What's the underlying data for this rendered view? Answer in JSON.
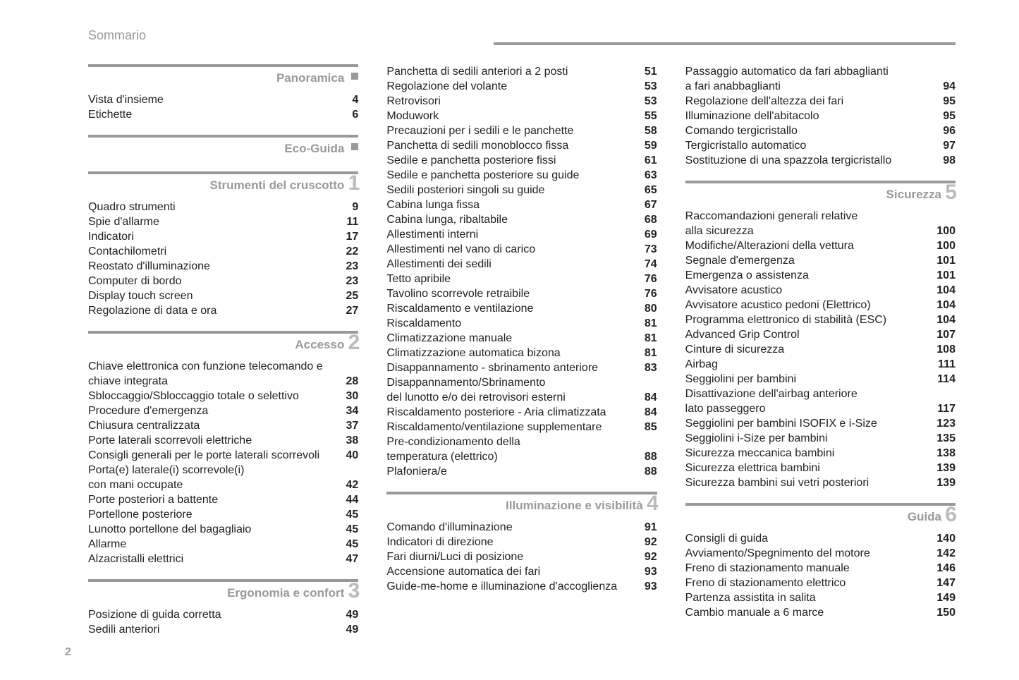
{
  "page_title": "Sommario",
  "page_number": "2",
  "columns": [
    {
      "sections": [
        {
          "title": "Panoramica",
          "marker": "square",
          "no_top_margin": true,
          "entries": [
            {
              "label": "Vista d'insieme",
              "page": "4"
            },
            {
              "label": "Etichette",
              "page": "6"
            }
          ]
        },
        {
          "title": "Eco-Guida",
          "marker": "square",
          "entries": []
        },
        {
          "title": "Strumenti del cruscotto",
          "num": "1",
          "entries": [
            {
              "label": "Quadro strumenti",
              "page": "9"
            },
            {
              "label": "Spie d'allarme",
              "page": "11"
            },
            {
              "label": "Indicatori",
              "page": "17"
            },
            {
              "label": "Contachilometri",
              "page": "22"
            },
            {
              "label": "Reostato d'illuminazione",
              "page": "23"
            },
            {
              "label": "Computer di bordo",
              "page": "23"
            },
            {
              "label": "Display touch screen",
              "page": "25"
            },
            {
              "label": "Regolazione di data e ora",
              "page": "27"
            }
          ]
        },
        {
          "title": "Accesso",
          "num": "2",
          "entries": [
            {
              "label": "Chiave elettronica con funzione telecomando e",
              "page": ""
            },
            {
              "label": "chiave integrata",
              "page": "28"
            },
            {
              "label": "Sbloccaggio/Sbloccaggio totale o selettivo",
              "page": "30"
            },
            {
              "label": "Procedure d'emergenza",
              "page": "34"
            },
            {
              "label": "Chiusura centralizzata",
              "page": "37"
            },
            {
              "label": "Porte laterali scorrevoli elettriche",
              "page": "38"
            },
            {
              "label": "Consigli generali per le porte laterali scorrevoli",
              "page": "40"
            },
            {
              "label": "Porta(e) laterale(i) scorrevole(i)",
              "page": ""
            },
            {
              "label": "con mani occupate",
              "page": "42"
            },
            {
              "label": "Porte posteriori a battente",
              "page": "44"
            },
            {
              "label": "Portellone posteriore",
              "page": "45"
            },
            {
              "label": "Lunotto portellone del bagagliaio",
              "page": "45"
            },
            {
              "label": "Allarme",
              "page": "45"
            },
            {
              "label": "Alzacristalli elettrici",
              "page": "47"
            }
          ]
        },
        {
          "title": "Ergonomia e confort",
          "num": "3",
          "entries": [
            {
              "label": "Posizione di guida corretta",
              "page": "49"
            },
            {
              "label": "Sedili anteriori",
              "page": "49"
            }
          ]
        }
      ]
    },
    {
      "sections": [
        {
          "no_header": true,
          "entries": [
            {
              "label": "Panchetta di sedili anteriori a 2 posti",
              "page": "51"
            },
            {
              "label": "Regolazione del volante",
              "page": "53"
            },
            {
              "label": "Retrovisori",
              "page": "53"
            },
            {
              "label": "Moduwork",
              "page": "55"
            },
            {
              "label": "Precauzioni per i sedili e le panchette",
              "page": "58"
            },
            {
              "label": "Panchetta di sedili monoblocco fissa",
              "page": "59"
            },
            {
              "label": "Sedile e panchetta posteriore fissi",
              "page": "61"
            },
            {
              "label": "Sedile e panchetta posteriore su guide",
              "page": "63"
            },
            {
              "label": "Sedili posteriori singoli su guide",
              "page": "65"
            },
            {
              "label": "Cabina lunga fissa",
              "page": "67"
            },
            {
              "label": "Cabina lunga, ribaltabile",
              "page": "68"
            },
            {
              "label": "Allestimenti interni",
              "page": "69"
            },
            {
              "label": "Allestimenti nel vano di carico",
              "page": "73"
            },
            {
              "label": "Allestimenti dei sedili",
              "page": "74"
            },
            {
              "label": "Tetto apribile",
              "page": "76"
            },
            {
              "label": "Tavolino scorrevole retraibile",
              "page": "76"
            },
            {
              "label": "Riscaldamento e ventilazione",
              "page": "80"
            },
            {
              "label": "Riscaldamento",
              "page": "81"
            },
            {
              "label": "Climatizzazione manuale",
              "page": "81"
            },
            {
              "label": "Climatizzazione automatica bizona",
              "page": "81"
            },
            {
              "label": "Disappannamento - sbrinamento anteriore",
              "page": "83"
            },
            {
              "label": "Disappannamento/Sbrinamento",
              "page": ""
            },
            {
              "label": "del lunotto e/o dei retrovisori esterni",
              "page": "84"
            },
            {
              "label": "Riscaldamento posteriore - Aria climatizzata",
              "page": "84"
            },
            {
              "label": "Riscaldamento/ventilazione supplementare",
              "page": "85"
            },
            {
              "label": "Pre-condizionamento della",
              "page": ""
            },
            {
              "label": "temperatura (elettrico)",
              "page": "88"
            },
            {
              "label": "Plafoniera/e",
              "page": "88"
            }
          ]
        },
        {
          "title": "Illuminazione e visibilità",
          "num": "4",
          "entries": [
            {
              "label": "Comando d'illuminazione",
              "page": "91"
            },
            {
              "label": "Indicatori di direzione",
              "page": "92"
            },
            {
              "label": "Fari diurni/Luci di posizione",
              "page": "92"
            },
            {
              "label": "Accensione automatica dei fari",
              "page": "93"
            },
            {
              "label": "Guide-me-home e illuminazione d'accoglienza",
              "page": "93"
            }
          ]
        }
      ]
    },
    {
      "sections": [
        {
          "no_header": true,
          "entries": [
            {
              "label": "Passaggio automatico da fari abbaglianti",
              "page": ""
            },
            {
              "label": "a fari anabbaglianti",
              "page": "94"
            },
            {
              "label": "Regolazione dell'altezza dei fari",
              "page": "95"
            },
            {
              "label": "Illuminazione dell'abitacolo",
              "page": "95"
            },
            {
              "label": "Comando tergicristallo",
              "page": "96"
            },
            {
              "label": "Tergicristallo automatico",
              "page": "97"
            },
            {
              "label": "Sostituzione di una spazzola tergicristallo",
              "page": "98"
            }
          ]
        },
        {
          "title": "Sicurezza",
          "num": "5",
          "entries": [
            {
              "label": "Raccomandazioni generali relative",
              "page": ""
            },
            {
              "label": "alla sicurezza",
              "page": "100"
            },
            {
              "label": "Modifiche/Alterazioni della vettura",
              "page": "100"
            },
            {
              "label": "Segnale d'emergenza",
              "page": "101"
            },
            {
              "label": "Emergenza o assistenza",
              "page": "101"
            },
            {
              "label": "Avvisatore acustico",
              "page": "104"
            },
            {
              "label": "Avvisatore acustico pedoni (Elettrico)",
              "page": "104"
            },
            {
              "label": "Programma elettronico di stabilità (ESC)",
              "page": "104"
            },
            {
              "label": "Advanced Grip Control",
              "page": "107"
            },
            {
              "label": "Cinture di sicurezza",
              "page": "108"
            },
            {
              "label": "Airbag",
              "page": "111"
            },
            {
              "label": "Seggiolini per bambini",
              "page": "114"
            },
            {
              "label": "Disattivazione dell'airbag anteriore",
              "page": ""
            },
            {
              "label": "lato passeggero",
              "page": "117"
            },
            {
              "label": "Seggiolini per bambini ISOFIX e i-Size",
              "page": "123"
            },
            {
              "label": "Seggiolini i-Size per bambini",
              "page": "135"
            },
            {
              "label": "Sicurezza meccanica bambini",
              "page": "138"
            },
            {
              "label": "Sicurezza elettrica bambini",
              "page": "139"
            },
            {
              "label": "Sicurezza bambini sui vetri posteriori",
              "page": "139"
            }
          ]
        },
        {
          "title": "Guida",
          "num": "6",
          "entries": [
            {
              "label": "Consigli di guida",
              "page": "140"
            },
            {
              "label": "Avviamento/Spegnimento del motore",
              "page": "142"
            },
            {
              "label": "Freno di stazionamento manuale",
              "page": "146"
            },
            {
              "label": "Freno di stazionamento elettrico",
              "page": "147"
            },
            {
              "label": "Partenza assistita in salita",
              "page": "149"
            },
            {
              "label": "Cambio manuale a 6 marce",
              "page": "150"
            }
          ]
        }
      ]
    }
  ]
}
